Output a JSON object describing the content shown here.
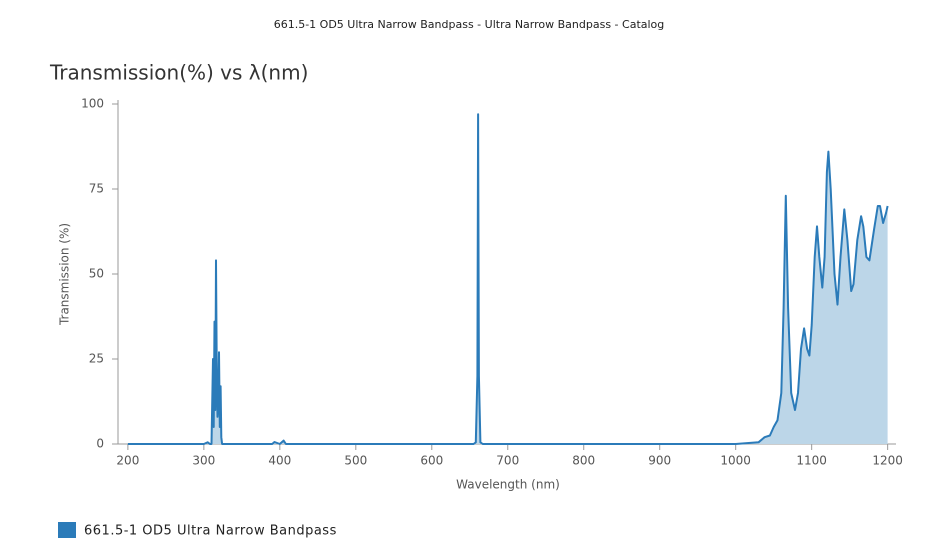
{
  "chart_data": {
    "type": "area",
    "title": "661.5-1 OD5 Ultra Narrow Bandpass - Ultra Narrow Bandpass - Catalog",
    "subtitle": "Transmission(%) vs λ(nm)",
    "x_label": "Wavelength (nm)",
    "y_label": "Transmission (%)",
    "x": [
      200,
      300,
      305,
      308,
      310,
      312,
      313,
      314,
      315,
      316,
      317,
      318,
      319,
      320,
      321,
      322,
      323,
      324,
      330,
      390,
      393,
      400,
      405,
      408,
      655,
      658,
      660,
      661,
      662,
      664,
      667,
      1000,
      1030,
      1038,
      1045,
      1050,
      1055,
      1060,
      1063,
      1066,
      1069,
      1073,
      1078,
      1082,
      1086,
      1090,
      1094,
      1097,
      1100,
      1104,
      1107,
      1110,
      1114,
      1117,
      1120,
      1122,
      1125,
      1130,
      1134,
      1138,
      1143,
      1147,
      1152,
      1155,
      1160,
      1165,
      1168,
      1172,
      1176,
      1182,
      1187,
      1190,
      1194,
      1198,
      1200
    ],
    "series": [
      {
        "name": "661.5-1 OD5 Ultra Narrow Bandpass",
        "color": "#2b7bb9",
        "fill": "#bcd6e8",
        "values": [
          0,
          0,
          0.5,
          0,
          0,
          25,
          5,
          36,
          10,
          54,
          20,
          8,
          12,
          27,
          5,
          17,
          2,
          0,
          0,
          0,
          0.6,
          0,
          1,
          0,
          0,
          0.5,
          20,
          97,
          20,
          0.5,
          0,
          0,
          0.5,
          2,
          2.5,
          5,
          7,
          15,
          40,
          73,
          40,
          15,
          10,
          15,
          28,
          34,
          28,
          26,
          35,
          55,
          64,
          55,
          46,
          55,
          80,
          86,
          75,
          50,
          41,
          55,
          69,
          60,
          45,
          47,
          60,
          67,
          64,
          55,
          54,
          63,
          70,
          70,
          65,
          68,
          70
        ]
      }
    ],
    "xlim": [
      187,
      1211
    ],
    "ylim": [
      0,
      100
    ],
    "xticks": [
      200,
      300,
      400,
      500,
      600,
      700,
      800,
      900,
      1000,
      1100,
      1200
    ],
    "yticks": [
      0,
      25,
      50,
      75,
      100
    ]
  }
}
